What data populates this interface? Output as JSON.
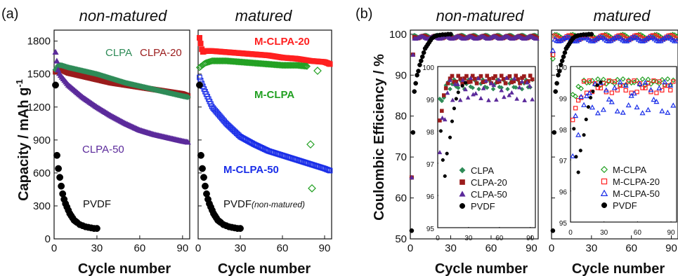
{
  "figure": {
    "panel_a_label": "(a)",
    "panel_b_label": "(b)",
    "left_ylabel": "Capacity / mAh g",
    "left_ylabel_sup": "-1",
    "right_ylabel": "Coulombic Efficiency / %",
    "xlabel": "Cycle number"
  },
  "chart_data": [
    {
      "type": "scatter",
      "title": "non-matured",
      "xlabel": "Cycle number",
      "ylabel": "Capacity / mAh g-1",
      "xlim": [
        0,
        95
      ],
      "ylim": [
        0,
        1900
      ],
      "xticks": [
        "0",
        "30",
        "60",
        "90"
      ],
      "yticks": [
        "0",
        "300",
        "600",
        "900",
        "1200",
        "1500",
        "1800"
      ],
      "series": [
        {
          "name": "CLPA",
          "color": "#2e8b57",
          "marker": "diamond-filled",
          "x": [
            1,
            3,
            5,
            10,
            20,
            30,
            40,
            50,
            60,
            70,
            80,
            90,
            94
          ],
          "y": [
            1540,
            1580,
            1580,
            1560,
            1530,
            1500,
            1460,
            1420,
            1390,
            1360,
            1330,
            1300,
            1290
          ]
        },
        {
          "name": "CLPA-20",
          "color": "#9b1c1c",
          "marker": "square-filled",
          "x": [
            1,
            3,
            5,
            10,
            20,
            30,
            40,
            50,
            60,
            70,
            80,
            90,
            94
          ],
          "y": [
            1520,
            1550,
            1540,
            1510,
            1480,
            1450,
            1420,
            1400,
            1380,
            1360,
            1340,
            1320,
            1300
          ]
        },
        {
          "name": "CLPA-50",
          "color": "#5b2a9b",
          "marker": "triangle-filled",
          "x": [
            1,
            3,
            5,
            10,
            20,
            30,
            40,
            50,
            60,
            70,
            80,
            90,
            94
          ],
          "y": [
            1700,
            1520,
            1480,
            1400,
            1290,
            1200,
            1120,
            1050,
            990,
            950,
            920,
            890,
            880
          ]
        },
        {
          "name": "PVDF",
          "color": "#000000",
          "marker": "circle-filled",
          "x": [
            1,
            2,
            3,
            4,
            5,
            6,
            7,
            8,
            9,
            10,
            11,
            12,
            13,
            14,
            15,
            16,
            18,
            20,
            22,
            24,
            26,
            28,
            30
          ],
          "y": [
            1400,
            760,
            640,
            560,
            480,
            410,
            360,
            320,
            290,
            260,
            230,
            210,
            190,
            170,
            160,
            150,
            130,
            120,
            110,
            105,
            100,
            95,
            95
          ]
        }
      ],
      "labels": [
        "CLPA",
        "CLPA-20",
        "CLPA-50",
        "PVDF"
      ]
    },
    {
      "type": "scatter",
      "title": "matured",
      "xlim": [
        0,
        95
      ],
      "ylim": [
        0,
        1900
      ],
      "xticks": [
        "0",
        "30",
        "60",
        "90"
      ],
      "series": [
        {
          "name": "M-CLPA-20",
          "color": "#ff2020",
          "marker": "square-filled",
          "x": [
            1,
            3,
            5,
            10,
            20,
            30,
            40,
            50,
            60,
            70,
            80,
            90,
            94
          ],
          "y": [
            1830,
            1700,
            1710,
            1710,
            1700,
            1690,
            1680,
            1670,
            1650,
            1640,
            1620,
            1610,
            1590
          ]
        },
        {
          "name": "M-CLPA",
          "color": "#22a022",
          "marker": "diamond-open",
          "x": [
            1,
            3,
            5,
            10,
            20,
            30,
            40,
            50,
            60,
            70,
            78,
            80,
            85
          ],
          "y": [
            1560,
            1580,
            1600,
            1620,
            1620,
            1610,
            1600,
            1590,
            1580,
            1580,
            1570,
            860,
            1530
          ]
        },
        {
          "name": "M-CLPA-50",
          "color": "#1a2ee8",
          "marker": "square-open",
          "x": [
            1,
            3,
            5,
            10,
            20,
            30,
            40,
            50,
            60,
            70,
            80,
            90,
            94
          ],
          "y": [
            1470,
            1400,
            1340,
            1200,
            1050,
            930,
            860,
            800,
            760,
            720,
            680,
            640,
            620
          ]
        },
        {
          "name": "PVDF",
          "color": "#000000",
          "marker": "circle-filled",
          "x": [
            1,
            2,
            3,
            4,
            5,
            6,
            7,
            8,
            9,
            10,
            11,
            12,
            13,
            14,
            15,
            16,
            18,
            20,
            22,
            24,
            26,
            28,
            30
          ],
          "y": [
            1400,
            760,
            640,
            560,
            480,
            410,
            360,
            320,
            290,
            260,
            230,
            210,
            190,
            170,
            160,
            150,
            130,
            120,
            110,
            105,
            100,
            95,
            95
          ]
        }
      ],
      "outliers": [
        {
          "x": 80,
          "y": 860
        },
        {
          "x": 81,
          "y": 460
        }
      ],
      "labels": [
        "M-CLPA-20",
        "M-CLPA",
        "M-CLPA-50",
        "PVDF",
        "(non-matured)"
      ]
    },
    {
      "type": "scatter",
      "title": "non-matured",
      "ylabel": "Coulombic Efficiency / %",
      "xlim": [
        0,
        95
      ],
      "ylim": [
        50,
        101
      ],
      "xticks": [
        "0",
        "30",
        "60",
        "90"
      ],
      "yticks": [
        "50",
        "60",
        "70",
        "80",
        "90",
        "100"
      ],
      "inset": {
        "xlim": [
          0,
          95
        ],
        "ylim": [
          95,
          100
        ],
        "xticks": [
          "0",
          "30",
          "60",
          "90"
        ],
        "yticks": [
          "95",
          "96",
          "97",
          "98",
          "99",
          "100"
        ],
        "legend": [
          "CLPA",
          "CLPA-20",
          "CLPA-50",
          "PVDF"
        ]
      }
    },
    {
      "type": "scatter",
      "title": "matured",
      "xlim": [
        0,
        95
      ],
      "ylim": [
        50,
        101
      ],
      "xticks": [
        "0",
        "30",
        "60",
        "90"
      ],
      "inset": {
        "xlim": [
          0,
          95
        ],
        "ylim": [
          95,
          100
        ],
        "xticks": [
          "0",
          "30",
          "60",
          "90"
        ],
        "yticks": [
          "95",
          "96",
          "97",
          "98",
          "99",
          "100"
        ],
        "legend": [
          "M-CLPA",
          "M-CLPA-20",
          "M-CLPA-50",
          "PVDF"
        ]
      }
    }
  ]
}
